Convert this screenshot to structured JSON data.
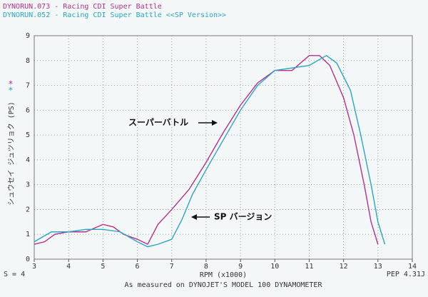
{
  "chart_data": {
    "type": "line",
    "titles": [
      "DYNORUN.073 - Racing CDI Super Battle",
      "DYNORUN.052 - Racing CDI Super Battle <<SP Version>>"
    ],
    "x_label": "RPM (x1000)",
    "y_label": "シュウセイ ジュツリョク (PS)",
    "left_note": "S = 4",
    "right_note": "PEP 4.31J",
    "footer": "As measured on DYNOJET'S MODEL 100 DYNAMOMETER",
    "annotations": [
      "スーパーバトル",
      "SP バージョン"
    ],
    "xlim": [
      3,
      14
    ],
    "xticks": [
      3,
      4,
      5,
      6,
      7,
      8,
      9,
      10,
      11,
      12,
      13,
      14
    ],
    "ylim": [
      0,
      9
    ],
    "yticks": [
      0,
      1,
      2,
      3,
      4,
      5,
      6,
      7,
      8,
      9
    ],
    "grid": true,
    "series": [
      {
        "name": "DYNORUN.073",
        "color": "#b4308c",
        "marker": "*",
        "x": [
          3.0,
          3.3,
          3.6,
          4.0,
          4.5,
          5.0,
          5.3,
          5.6,
          6.0,
          6.3,
          6.6,
          7.0,
          7.5,
          8.0,
          8.5,
          9.0,
          9.5,
          10.0,
          10.5,
          11.0,
          11.3,
          11.6,
          12.0,
          12.3,
          12.6,
          12.8,
          13.0
        ],
        "values": [
          0.6,
          0.7,
          1.0,
          1.1,
          1.1,
          1.4,
          1.3,
          1.0,
          0.8,
          0.6,
          1.4,
          2.0,
          2.8,
          3.9,
          5.1,
          6.2,
          7.1,
          7.6,
          7.6,
          8.2,
          8.2,
          7.8,
          6.5,
          5.0,
          3.0,
          1.5,
          0.6
        ]
      },
      {
        "name": "DYNORUN.052",
        "color": "#2aa6c2",
        "marker": "*",
        "x": [
          3.0,
          3.5,
          4.0,
          4.5,
          5.0,
          5.5,
          6.0,
          6.3,
          6.6,
          7.0,
          7.3,
          7.6,
          8.0,
          8.5,
          9.0,
          9.5,
          10.0,
          10.5,
          11.0,
          11.5,
          11.8,
          12.2,
          12.5,
          12.8,
          13.0,
          13.2
        ],
        "values": [
          0.7,
          1.1,
          1.1,
          1.2,
          1.2,
          1.1,
          0.7,
          0.5,
          0.6,
          0.8,
          1.6,
          2.6,
          3.6,
          4.8,
          6.0,
          7.0,
          7.6,
          7.7,
          7.8,
          8.2,
          7.9,
          6.8,
          5.0,
          3.0,
          1.5,
          0.6
        ]
      }
    ]
  }
}
